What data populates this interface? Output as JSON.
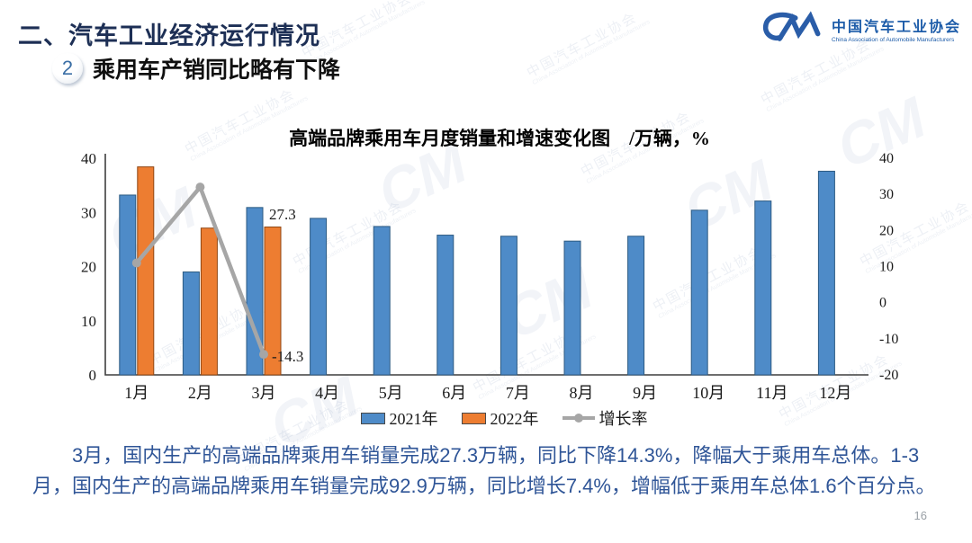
{
  "header": {
    "title": "二、汽车工业经济运行情况",
    "badge": "2",
    "subtitle": "乘用车产销同比略有下降"
  },
  "logo": {
    "mark": "CM",
    "name_cn": "中国汽车工业协会",
    "name_en": "China Association of Automobile Manufacturers"
  },
  "chart_data": {
    "type": "combo-bar-line",
    "title": "高端品牌乘用车月度销量和增速变化图　/万辆，%",
    "categories": [
      "1月",
      "2月",
      "3月",
      "4月",
      "5月",
      "6月",
      "7月",
      "8月",
      "9月",
      "10月",
      "11月",
      "12月"
    ],
    "series": [
      {
        "name": "2021年",
        "type": "bar",
        "color": "#4e8bc8",
        "border": "#2c5a82",
        "values": [
          33.2,
          19.0,
          30.9,
          28.9,
          27.4,
          25.8,
          25.6,
          24.7,
          25.6,
          30.4,
          32.1,
          37.6
        ]
      },
      {
        "name": "2022年",
        "type": "bar",
        "color": "#ed7d31",
        "border": "#8f4511",
        "values": [
          38.4,
          27.1,
          27.3,
          null,
          null,
          null,
          null,
          null,
          null,
          null,
          null,
          null
        ]
      },
      {
        "name": "增长率",
        "type": "line",
        "axis": "right",
        "color": "#a6a6a6",
        "values": [
          11.0,
          32.0,
          -14.3,
          null,
          null,
          null,
          null,
          null,
          null,
          null,
          null,
          null
        ]
      }
    ],
    "left_axis": {
      "min": 0,
      "max": 40,
      "ticks": [
        0,
        10,
        20,
        30,
        40
      ]
    },
    "right_axis": {
      "min": -20,
      "max": 40,
      "ticks": [
        40,
        30,
        20,
        10,
        0,
        -10,
        -20
      ]
    },
    "grid": false,
    "legend_position": "bottom",
    "data_labels": [
      {
        "series": "2022年",
        "month": "3月",
        "text": "27.3",
        "color": "#1a1a1a"
      },
      {
        "series": "增长率",
        "month": "3月",
        "text": "-14.3",
        "color": "#e42222"
      }
    ]
  },
  "body_text": "3月，国内生产的高端品牌乘用车销量完成27.3万辆，同比下降14.3%，降幅大于乘用车总体。1-3月，国内生产的高端品牌乘用车销量完成92.9万辆，同比增长7.4%，增幅低于乘用车总体1.6个百分点。",
  "page_number": "16",
  "watermark": {
    "text_cn": "中国汽车工业协会",
    "text_en": "China Association of Automobile Manufacturers",
    "mark": "CM"
  }
}
